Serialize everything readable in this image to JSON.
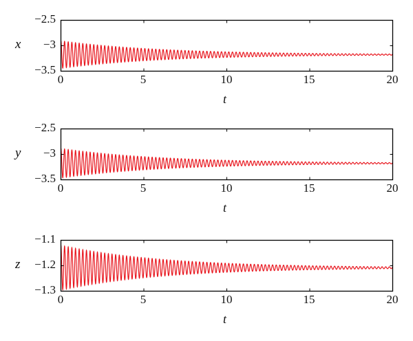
{
  "figure": {
    "line_color": "#e8141c",
    "axis_color": "#000000"
  },
  "chart_data": [
    {
      "type": "line",
      "title": "",
      "xlabel": "t",
      "ylabel": "x",
      "xlim": [
        0,
        20
      ],
      "ylim": [
        -3.5,
        -2.5
      ],
      "xticks": [
        "0",
        "5",
        "10",
        "15",
        "20"
      ],
      "yticks": [
        "−2.5",
        "−3",
        "−3.5"
      ],
      "grid": false,
      "legend": null,
      "series": [
        {
          "name": "x(t)",
          "description": "damped oscillation converging to about -3.17",
          "mean": -3.175,
          "initial_amplitude": 0.27,
          "decay_rate": 0.16,
          "period": 0.22,
          "samples": {
            "t": [
              0,
              2.5,
              5,
              7.5,
              10,
              12.5,
              15,
              17.5,
              20
            ],
            "envelope_upper": [
              -2.92,
              -3.0,
              -3.06,
              -3.1,
              -3.13,
              -3.15,
              -3.16,
              -3.165,
              -3.17
            ],
            "envelope_lower": [
              -3.45,
              -3.35,
              -3.29,
              -3.25,
              -3.22,
              -3.2,
              -3.19,
              -3.185,
              -3.18
            ]
          }
        }
      ]
    },
    {
      "type": "line",
      "title": "",
      "xlabel": "t",
      "ylabel": "y",
      "xlim": [
        0,
        20
      ],
      "ylim": [
        -3.5,
        -2.5
      ],
      "xticks": [
        "0",
        "5",
        "10",
        "15",
        "20"
      ],
      "yticks": [
        "−2.5",
        "−3",
        "−3.5"
      ],
      "grid": false,
      "legend": null,
      "series": [
        {
          "name": "y(t)",
          "description": "damped oscillation converging to about -3.17",
          "mean": -3.175,
          "initial_amplitude": 0.29,
          "decay_rate": 0.16,
          "period": 0.22,
          "samples": {
            "t": [
              0,
              2.5,
              5,
              7.5,
              10,
              12.5,
              15,
              17.5,
              20
            ],
            "envelope_upper": [
              -2.89,
              -2.99,
              -3.05,
              -3.1,
              -3.13,
              -3.15,
              -3.16,
              -3.165,
              -3.17
            ],
            "envelope_lower": [
              -3.47,
              -3.36,
              -3.3,
              -3.25,
              -3.22,
              -3.2,
              -3.19,
              -3.185,
              -3.18
            ]
          }
        }
      ]
    },
    {
      "type": "line",
      "title": "",
      "xlabel": "t",
      "ylabel": "z",
      "xlim": [
        0,
        20
      ],
      "ylim": [
        -1.3,
        -1.1
      ],
      "xticks": [
        "0",
        "5",
        "10",
        "15",
        "20"
      ],
      "yticks": [
        "−1.1",
        "−1.2",
        "−1.3"
      ],
      "grid": false,
      "legend": null,
      "series": [
        {
          "name": "z(t)",
          "description": "damped oscillation converging to about -1.21",
          "mean": -1.208,
          "initial_amplitude": 0.088,
          "decay_rate": 0.16,
          "period": 0.22,
          "samples": {
            "t": [
              0,
              2.5,
              5,
              7.5,
              10,
              12.5,
              15,
              17.5,
              20
            ],
            "envelope_upper": [
              -1.12,
              -1.15,
              -1.17,
              -1.185,
              -1.19,
              -1.197,
              -1.201,
              -1.204,
              -1.205
            ],
            "envelope_lower": [
              -1.3,
              -1.27,
              -1.25,
              -1.235,
              -1.226,
              -1.219,
              -1.215,
              -1.212,
              -1.211
            ]
          }
        }
      ]
    }
  ]
}
